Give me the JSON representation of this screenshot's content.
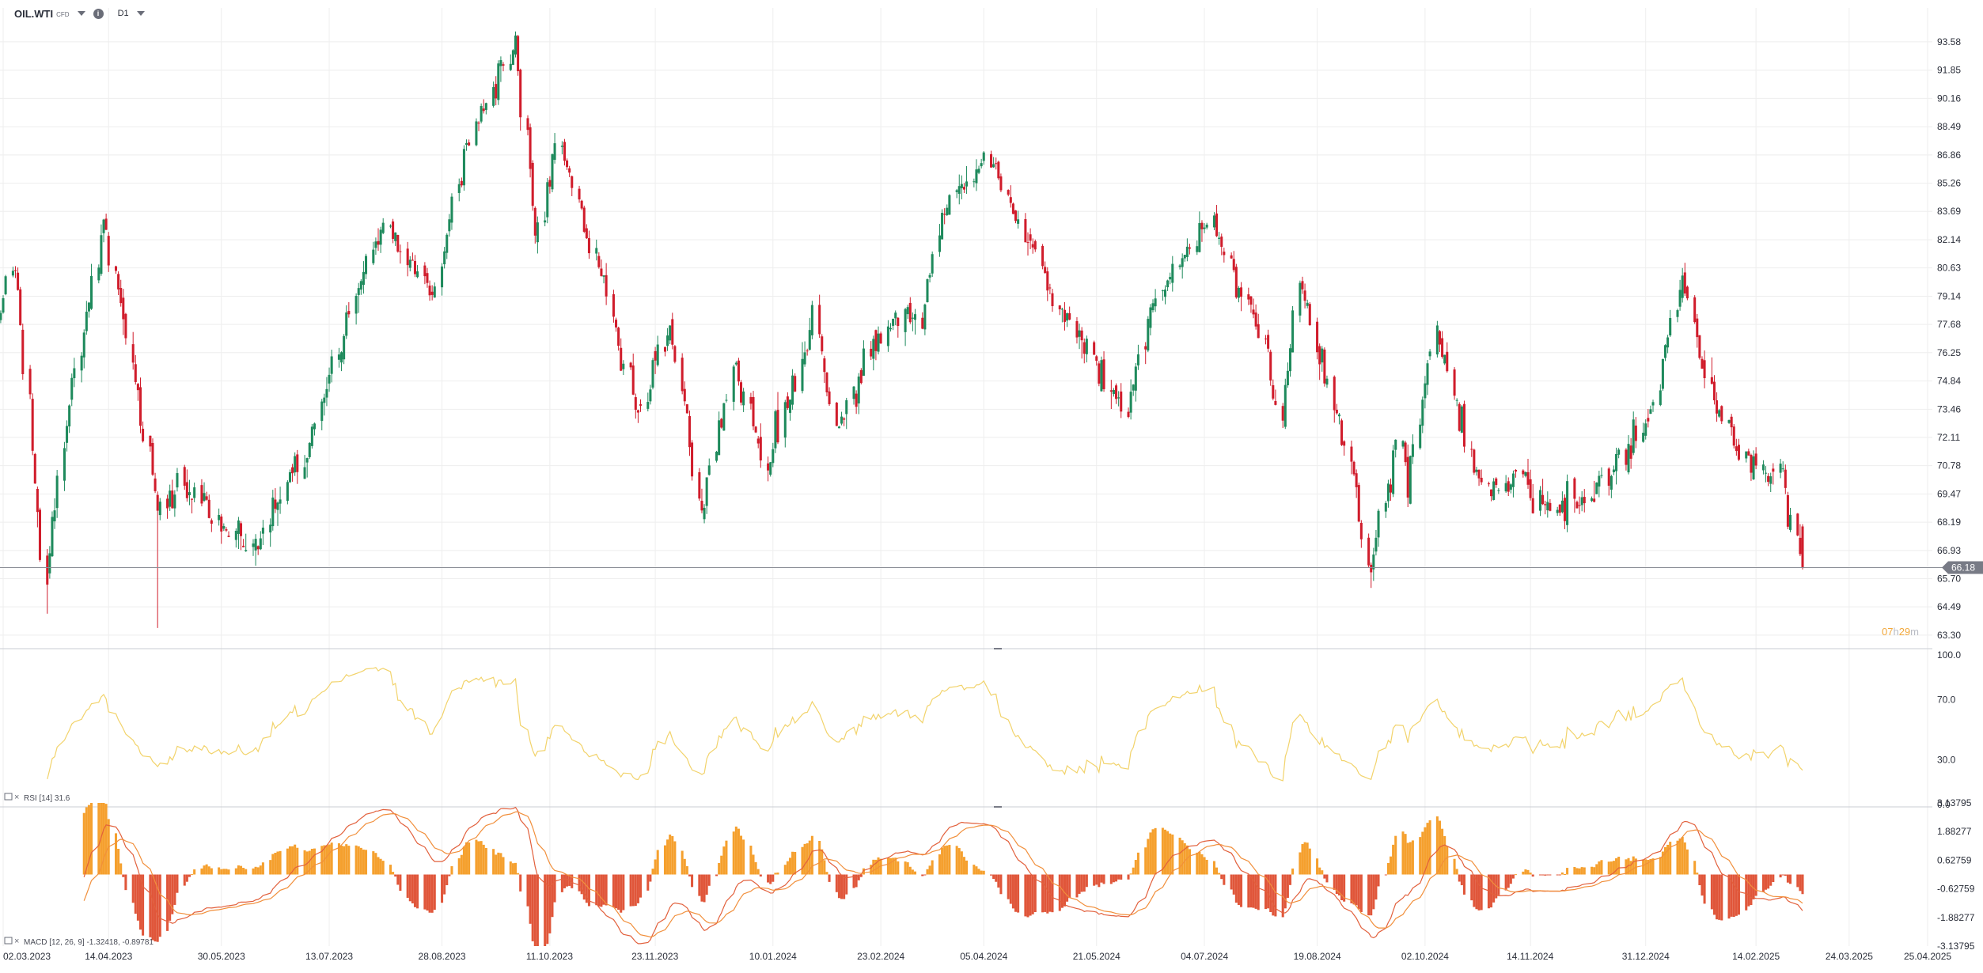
{
  "toolbar": {
    "symbol": "OIL.WTI",
    "symbol_sub": "CFD",
    "timeframe": "D1",
    "icons": {
      "symbol_dropdown": "chevron-down-icon",
      "info": "info-icon",
      "timeframe_dropdown": "chevron-down-icon"
    }
  },
  "colors": {
    "up": "#1e8a5c",
    "down": "#d01c2b",
    "rsi_line": "#f2d36b",
    "macd_pos": "#f5a02e",
    "macd_neg": "#e0563a",
    "macd_line": "#e2603c",
    "signal_line": "#f18f3b",
    "price_badge": "#787b86",
    "countdown": "#f2a83b",
    "grid": "#eeeeee"
  },
  "countdown": {
    "hours": "07",
    "h_unit": "h",
    "minutes": "29",
    "m_unit": "m"
  },
  "current_price": "66.18",
  "chart_data": [
    {
      "type": "candlestick",
      "name": "OIL.WTI",
      "timeframe": "D1",
      "current_price": 66.18,
      "y_ticks": [
        "93.58",
        "91.85",
        "90.16",
        "88.49",
        "86.86",
        "85.26",
        "83.69",
        "82.14",
        "80.63",
        "79.14",
        "77.68",
        "76.25",
        "74.84",
        "73.46",
        "72.11",
        "70.78",
        "69.47",
        "68.19",
        "66.93",
        "65.70",
        "64.49",
        "63.30"
      ],
      "ylim": [
        63.0,
        95.2
      ],
      "y_scale": "log",
      "x_ticks": [
        "02.03.2023",
        "14.04.2023",
        "30.05.2023",
        "13.07.2023",
        "28.08.2023",
        "11.10.2023",
        "23.11.2023",
        "10.01.2024",
        "23.02.2024",
        "05.04.2024",
        "21.05.2024",
        "04.07.2024",
        "19.08.2024",
        "02.10.2024",
        "14.11.2024",
        "31.12.2024",
        "14.02.2025",
        "24.03.2025",
        "25.04.2025"
      ],
      "anchors": [
        [
          "2023-02-27",
          77.0
        ],
        [
          "2023-03-07",
          80.5
        ],
        [
          "2023-03-17",
          66.8
        ],
        [
          "2023-03-20",
          66.0
        ],
        [
          "2023-03-31",
          75.5
        ],
        [
          "2023-04-12",
          83.2
        ],
        [
          "2023-05-04",
          68.6
        ],
        [
          "2023-05-12",
          70.0
        ],
        [
          "2023-05-31",
          67.9
        ],
        [
          "2023-06-12",
          67.2
        ],
        [
          "2023-06-23",
          69.3
        ],
        [
          "2023-07-05",
          71.8
        ],
        [
          "2023-07-31",
          81.8
        ],
        [
          "2023-08-07",
          82.8
        ],
        [
          "2023-08-24",
          78.8
        ],
        [
          "2023-09-07",
          87.5
        ],
        [
          "2023-09-27",
          93.6
        ],
        [
          "2023-10-05",
          82.3
        ],
        [
          "2023-10-13",
          87.7
        ],
        [
          "2023-11-01",
          80.5
        ],
        [
          "2023-11-16",
          72.9
        ],
        [
          "2023-11-29",
          77.8
        ],
        [
          "2023-12-12",
          68.6
        ],
        [
          "2023-12-26",
          75.6
        ],
        [
          "2024-01-08",
          70.8
        ],
        [
          "2024-01-26",
          78.0
        ],
        [
          "2024-02-05",
          72.6
        ],
        [
          "2024-02-29",
          78.3
        ],
        [
          "2024-03-11",
          77.9
        ],
        [
          "2024-03-19",
          83.5
        ],
        [
          "2024-04-05",
          86.9
        ],
        [
          "2024-04-22",
          82.7
        ],
        [
          "2024-05-06",
          78.5
        ],
        [
          "2024-06-03",
          73.3
        ],
        [
          "2024-06-12",
          78.5
        ],
        [
          "2024-07-05",
          83.3
        ],
        [
          "2024-07-26",
          77.2
        ],
        [
          "2024-08-05",
          72.9
        ],
        [
          "2024-08-12",
          80.1
        ],
        [
          "2024-09-03",
          70.3
        ],
        [
          "2024-09-10",
          65.8
        ],
        [
          "2024-09-20",
          71.9
        ],
        [
          "2024-09-25",
          69.8
        ],
        [
          "2024-10-07",
          77.8
        ],
        [
          "2024-10-22",
          70.7
        ],
        [
          "2024-11-01",
          69.5
        ],
        [
          "2024-11-08",
          70.5
        ],
        [
          "2024-11-20",
          68.8
        ],
        [
          "2024-12-05",
          69.0
        ],
        [
          "2024-12-17",
          70.4
        ],
        [
          "2025-01-02",
          73.1
        ],
        [
          "2025-01-15",
          80.1
        ],
        [
          "2025-01-24",
          74.7
        ],
        [
          "2025-02-07",
          71.1
        ],
        [
          "2025-02-14",
          70.7
        ],
        [
          "2025-02-24",
          70.7
        ],
        [
          "2025-03-05",
          66.2
        ]
      ]
    },
    {
      "type": "line",
      "name": "RSI",
      "legend": "RSI [14] 31.6",
      "period": 14,
      "last_value": 31.6,
      "y_ticks": [
        "100.0",
        "70.0",
        "30.0",
        "0.0"
      ],
      "ylim": [
        0,
        100
      ]
    },
    {
      "type": "histogram+line",
      "name": "MACD",
      "legend": "MACD [12, 26, 9] -1.32418, -0.89781",
      "params": [
        12,
        26,
        9
      ],
      "last_values": [
        -1.32418,
        -0.89781
      ],
      "y_ticks": [
        "3.13795",
        "1.88277",
        "0.62759",
        "-0.62759",
        "-1.88277",
        "-3.13795"
      ],
      "ylim": [
        -3.13795,
        3.13795
      ]
    }
  ],
  "rsi_legend": {
    "text": "RSI [14] 31.6",
    "icons": [
      "indicator-settings-icon",
      "close-icon"
    ]
  },
  "macd_legend": {
    "text": "MACD [12, 26, 9] -1.32418, -0.89781",
    "icons": [
      "indicator-settings-icon",
      "close-icon"
    ]
  }
}
